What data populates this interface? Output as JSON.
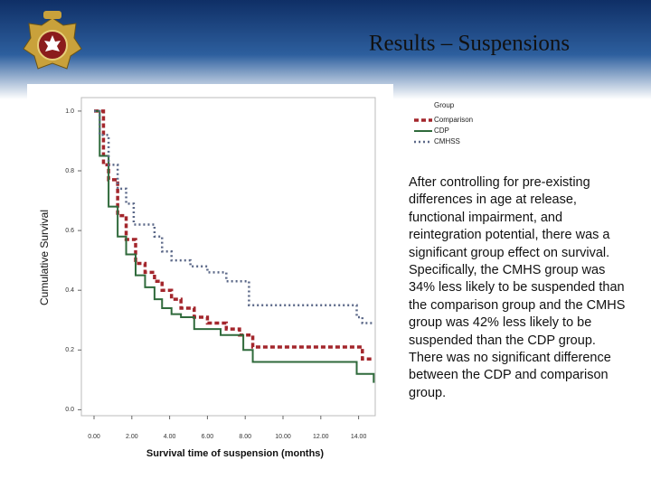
{
  "title": "Results – Suspensions",
  "body": "After controlling for pre-existing differences in age at release, functional impairment, and reintegration potential, there was a significant group effect on survival. Specifically, the CMHS group was 34% less likely to be suspended than the comparison group and the CMHS group was 42% less likely to be suspended than the CDP group. There was no significant difference between the CDP and comparison group.",
  "chart_data": {
    "type": "step",
    "y_label": "Cumulative Survival",
    "x_label": "Survival time of suspension (months)",
    "legend_title": "Group",
    "xlim": [
      -0.67,
      14.88
    ],
    "ylim": [
      -0.02,
      1.03
    ],
    "xticks": [
      {
        "value": 0,
        "label": "0.00"
      },
      {
        "value": 2,
        "label": "2.00"
      },
      {
        "value": 4,
        "label": "4.00"
      },
      {
        "value": 6,
        "label": "6.00"
      },
      {
        "value": 8,
        "label": "8.00"
      },
      {
        "value": 10,
        "label": "10.00"
      },
      {
        "value": 12,
        "label": "12.00"
      },
      {
        "value": 14,
        "label": "14.00"
      }
    ],
    "yticks": [
      {
        "value": 0,
        "label": "0.0"
      },
      0.2,
      0.4,
      0.6,
      0.8,
      {
        "value": 1,
        "label": "1.0"
      }
    ],
    "series": [
      {
        "name": "Comparison",
        "color": "#a3262c",
        "dash": "5 3",
        "width": 3.5,
        "x": [
          0,
          0.5,
          0.77,
          1.25,
          1.7,
          2.2,
          2.7,
          3.2,
          3.6,
          4.1,
          4.6,
          5.3,
          6.0,
          7.0,
          7.7,
          8.4,
          14.2,
          14.8
        ],
        "values": [
          1.0,
          0.82,
          0.77,
          0.65,
          0.57,
          0.49,
          0.46,
          0.43,
          0.4,
          0.37,
          0.34,
          0.31,
          0.29,
          0.27,
          0.25,
          0.21,
          0.17,
          0.17
        ]
      },
      {
        "name": "CDP",
        "color": "#2f6a3b",
        "dash": "none",
        "width": 2,
        "x": [
          0,
          0.3,
          0.77,
          1.25,
          1.7,
          2.2,
          2.7,
          3.2,
          3.6,
          4.1,
          4.6,
          5.3,
          6.7,
          7.9,
          8.4,
          13.9,
          14.8
        ],
        "values": [
          1.0,
          0.85,
          0.68,
          0.58,
          0.52,
          0.45,
          0.41,
          0.37,
          0.34,
          0.32,
          0.31,
          0.27,
          0.25,
          0.2,
          0.16,
          0.12,
          0.09
        ]
      },
      {
        "name": "CMHSS",
        "color": "#5b6888",
        "dash": "2 3",
        "width": 2.5,
        "x": [
          0,
          0.3,
          0.77,
          1.25,
          1.7,
          2.1,
          3.2,
          3.6,
          4.1,
          5.1,
          6.0,
          7.0,
          8.2,
          13.9,
          14.2,
          14.8
        ],
        "values": [
          1.0,
          0.92,
          0.82,
          0.74,
          0.69,
          0.62,
          0.58,
          0.53,
          0.5,
          0.48,
          0.46,
          0.43,
          0.35,
          0.31,
          0.29,
          0.29
        ]
      }
    ]
  }
}
